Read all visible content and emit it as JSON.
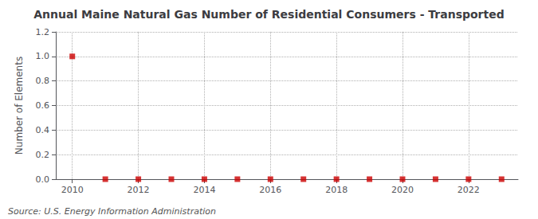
{
  "chart_data": {
    "type": "scatter",
    "title": "Annual Maine Natural Gas Number of Residential Consumers - Transported",
    "ylabel": "Number of Elements",
    "annotations": [
      "Source: U.S. Energy Information Administration"
    ],
    "x": [
      2010,
      2011,
      2012,
      2013,
      2014,
      2015,
      2016,
      2017,
      2018,
      2019,
      2020,
      2021,
      2022,
      2023
    ],
    "values": [
      1,
      0,
      0,
      0,
      0,
      0,
      0,
      0,
      0,
      0,
      0,
      0,
      0,
      0
    ],
    "color": "#cc0000",
    "marker": "square",
    "xlim": [
      2009.5,
      2023.5
    ],
    "xticks": [
      2010,
      2012,
      2014,
      2016,
      2018,
      2020,
      2022
    ],
    "ylim": [
      0.0,
      1.2
    ],
    "yticks": [
      {
        "value": 0,
        "label": "0.0"
      },
      0.2,
      0.4,
      0.6,
      0.8,
      {
        "value": 1,
        "label": "1.0"
      },
      1.2
    ],
    "grid": true
  }
}
